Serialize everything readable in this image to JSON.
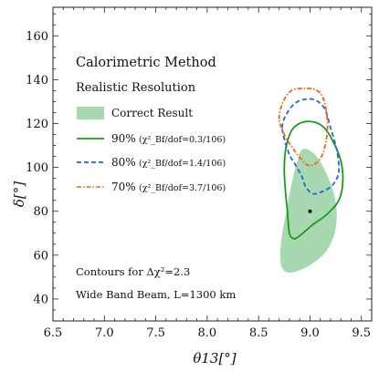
{
  "chart_data": {
    "type": "contour",
    "title": "Calorimetric Method",
    "subtitle": "Realistic Resolution",
    "xlabel": "θ13[°]",
    "ylabel": "δ[°]",
    "xlim": [
      6.5,
      9.6
    ],
    "ylim": [
      30,
      173
    ],
    "xticks": [
      "6.5",
      "7.0",
      "7.5",
      "8.0",
      "8.5",
      "9.0",
      "9.5"
    ],
    "yticks": [
      "40",
      "60",
      "80",
      "100",
      "120",
      "140",
      "160"
    ],
    "grid": false,
    "legend_position": "left",
    "series": [
      {
        "name": "Correct Result",
        "style": "filled",
        "color": "#a8d8b0",
        "points": [
          [
            8.92,
            108
          ],
          [
            9.02,
            107
          ],
          [
            9.12,
            101
          ],
          [
            9.22,
            90
          ],
          [
            9.26,
            80
          ],
          [
            9.24,
            70
          ],
          [
            9.16,
            62
          ],
          [
            9.05,
            57
          ],
          [
            8.92,
            53.5
          ],
          [
            8.8,
            52
          ],
          [
            8.73,
            54
          ],
          [
            8.71,
            60
          ],
          [
            8.73,
            70
          ],
          [
            8.77,
            80
          ],
          [
            8.81,
            90
          ],
          [
            8.86,
            100
          ],
          [
            8.92,
            108
          ]
        ]
      },
      {
        "name": "90%",
        "note": "(χ²_Bf/dof=0.3/106)",
        "style": "solid",
        "color": "#1a9a1a",
        "points": [
          [
            8.77,
            110
          ],
          [
            8.84,
            118
          ],
          [
            8.98,
            121
          ],
          [
            9.14,
            118
          ],
          [
            9.28,
            106
          ],
          [
            9.32,
            95
          ],
          [
            9.28,
            85
          ],
          [
            9.15,
            78
          ],
          [
            9.03,
            74
          ],
          [
            8.93,
            70
          ],
          [
            8.85,
            67.5
          ],
          [
            8.8,
            70
          ],
          [
            8.78,
            80
          ],
          [
            8.76,
            90
          ],
          [
            8.75,
            100
          ],
          [
            8.77,
            110
          ]
        ]
      },
      {
        "name": "80%",
        "note": "(χ²_Bf/dof=1.4/106)",
        "style": "dashed",
        "color": "#2266dd",
        "points": [
          [
            8.73,
            118
          ],
          [
            8.78,
            125
          ],
          [
            8.88,
            130
          ],
          [
            9.03,
            131
          ],
          [
            9.14,
            127
          ],
          [
            9.2,
            118
          ],
          [
            9.26,
            108
          ],
          [
            9.28,
            98
          ],
          [
            9.22,
            92
          ],
          [
            9.12,
            89
          ],
          [
            9.03,
            88
          ],
          [
            8.96,
            91
          ],
          [
            8.92,
            96
          ],
          [
            8.86,
            101
          ],
          [
            8.79,
            107
          ],
          [
            8.73,
            118
          ]
        ]
      },
      {
        "name": "70%",
        "note": "(χ²_Bf/dof=3.7/106)",
        "style": "dash-dot",
        "color": "#ee6611",
        "points": [
          [
            8.7,
            122
          ],
          [
            8.74,
            130
          ],
          [
            8.82,
            135
          ],
          [
            8.95,
            136
          ],
          [
            9.07,
            135
          ],
          [
            9.14,
            130
          ],
          [
            9.17,
            118
          ],
          [
            9.13,
            107
          ],
          [
            9.06,
            102
          ],
          [
            8.98,
            101
          ],
          [
            8.91,
            104
          ],
          [
            8.83,
            109
          ],
          [
            8.76,
            114
          ],
          [
            8.7,
            122
          ]
        ]
      }
    ],
    "best_fit_point": [
      9.0,
      80
    ],
    "annotations": [
      "Contours for Δχ²=2.3",
      "Wide Band Beam, L=1300 km"
    ]
  }
}
